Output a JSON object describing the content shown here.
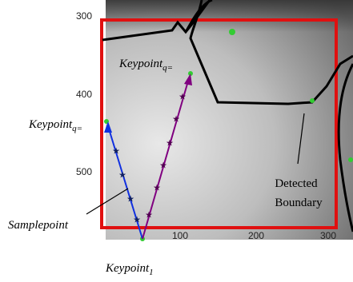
{
  "axes": {
    "yticks": [
      300,
      400,
      500
    ],
    "xticks": [
      100,
      200,
      300
    ]
  },
  "annotations": {
    "keypoint_top": {
      "text": "Keypoint",
      "sub": "q="
    },
    "keypoint_left": {
      "text": "Keypoint",
      "sub": "q="
    },
    "samplepoint": "Samplepoint",
    "keypoint_start": {
      "text": "Keypoint",
      "sub": "1"
    },
    "boundary": [
      "Detected",
      "Boundary"
    ]
  }
}
